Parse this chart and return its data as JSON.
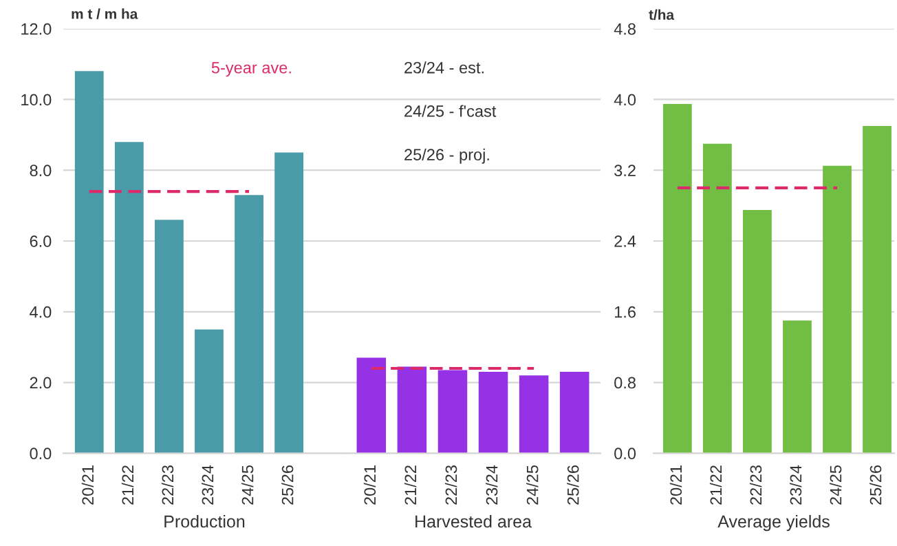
{
  "chart_data": [
    {
      "type": "bar",
      "xlabel": "Production",
      "ylabel": "m t / m ha",
      "categories": [
        "20/21",
        "21/22",
        "22/23",
        "23/24",
        "24/25",
        "25/26"
      ],
      "series": [
        {
          "color": "#4a9ba8",
          "values": [
            10.8,
            8.8,
            6.6,
            3.5,
            7.3,
            8.5
          ]
        },
        {
          "type": "line",
          "name": "5-year ave.",
          "color": "#dc2a6a",
          "line_style": "dashed",
          "values": [
            7.4,
            7.4,
            7.4,
            7.4,
            7.4,
            null
          ]
        }
      ],
      "ylim": [
        0,
        12
      ],
      "yticks": [
        {
          "value": 0,
          "label": "0.0"
        },
        {
          "value": 2,
          "label": "2.0"
        },
        {
          "value": 4,
          "label": "4.0"
        },
        {
          "value": 6,
          "label": "6.0"
        },
        {
          "value": 8,
          "label": "8.0"
        },
        {
          "value": 10,
          "label": "10.0"
        },
        {
          "value": 12,
          "label": "12.0"
        }
      ],
      "grid": "y"
    },
    {
      "type": "bar",
      "xlabel": "Harvested area",
      "categories": [
        "20/21",
        "21/22",
        "22/23",
        "23/24",
        "24/25",
        "25/26"
      ],
      "series": [
        {
          "color": "#9632e6",
          "values": [
            2.7,
            2.45,
            2.35,
            2.3,
            2.2,
            2.3
          ]
        },
        {
          "type": "line",
          "color": "#dc2a6a",
          "line_style": "dashed",
          "values": [
            2.4,
            2.4,
            2.4,
            2.4,
            2.4,
            null
          ]
        }
      ],
      "ylim": [
        0,
        12
      ],
      "grid": "y",
      "tick_labels": "x",
      "annotations": [
        "23/24 - est.",
        "24/25 - f'cast",
        "25/26 - proj."
      ]
    },
    {
      "type": "bar",
      "xlabel": "Average yields",
      "ylabel": "t/ha",
      "categories": [
        "20/21",
        "21/22",
        "22/23",
        "23/24",
        "24/25",
        "25/26"
      ],
      "series": [
        {
          "color": "#72be44",
          "values": [
            3.95,
            3.5,
            2.75,
            1.5,
            3.25,
            3.7
          ]
        },
        {
          "type": "line",
          "color": "#dc2a6a",
          "line_style": "dashed",
          "values": [
            3.0,
            3.0,
            3.0,
            3.0,
            3.0,
            null
          ]
        }
      ],
      "ylim": [
        0,
        4.8
      ],
      "yticks": [
        {
          "value": 0,
          "label": "0.0"
        },
        {
          "value": 0.8,
          "label": "0.8"
        },
        {
          "value": 1.6,
          "label": "1.6"
        },
        {
          "value": 2.4,
          "label": "2.4"
        },
        {
          "value": 3.2,
          "label": "3.2"
        },
        {
          "value": 4.0,
          "label": "4.0"
        },
        {
          "value": 4.8,
          "label": "4.8"
        }
      ],
      "grid": "y"
    }
  ]
}
